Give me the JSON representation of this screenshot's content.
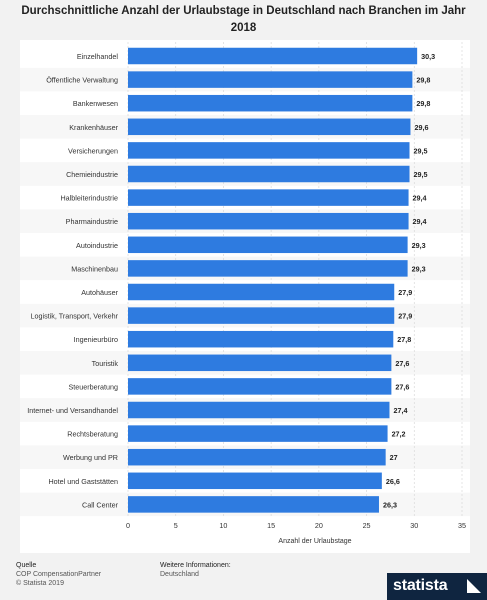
{
  "chart_data": {
    "type": "bar",
    "orientation": "horizontal",
    "title": "Durchschnittliche Anzahl der Urlaubstage in Deutschland nach Branchen im Jahr 2018",
    "xlabel": "Anzahl der Urlaubstage",
    "ylabel": "",
    "xlim": [
      0,
      35
    ],
    "ticks": [
      0,
      5,
      10,
      15,
      20,
      25,
      30,
      35
    ],
    "grid": true,
    "bar_color": "#2e7be0",
    "categories": [
      "Einzelhandel",
      "Öffentliche Verwaltung",
      "Bankenwesen",
      "Krankenhäuser",
      "Versicherungen",
      "Chemieindustrie",
      "Halbleiterindustrie",
      "Pharmaindustrie",
      "Autoindustrie",
      "Maschinenbau",
      "Autohäuser",
      "Logistik, Transport, Verkehr",
      "Ingenieurbüro",
      "Touristik",
      "Steuerberatung",
      "Internet- und Versandhandel",
      "Rechtsberatung",
      "Werbung und PR",
      "Hotel und Gaststätten",
      "Call Center"
    ],
    "values": [
      30.3,
      29.8,
      29.8,
      29.6,
      29.5,
      29.5,
      29.4,
      29.4,
      29.3,
      29.3,
      27.9,
      27.9,
      27.8,
      27.6,
      27.6,
      27.4,
      27.2,
      27,
      26.6,
      26.3
    ],
    "value_labels": [
      "30,3",
      "29,8",
      "29,8",
      "29,6",
      "29,5",
      "29,5",
      "29,4",
      "29,4",
      "29,3",
      "29,3",
      "27,9",
      "27,9",
      "27,8",
      "27,6",
      "27,6",
      "27,4",
      "27,2",
      "27",
      "26,6",
      "26,3"
    ]
  },
  "footer": {
    "source_heading": "Quelle",
    "source_line": "COP CompensationPartner",
    "copyright": "© Statista 2019",
    "info_heading": "Weitere Informationen:",
    "info_line": "Deutschland"
  },
  "brand": {
    "name": "statista"
  }
}
